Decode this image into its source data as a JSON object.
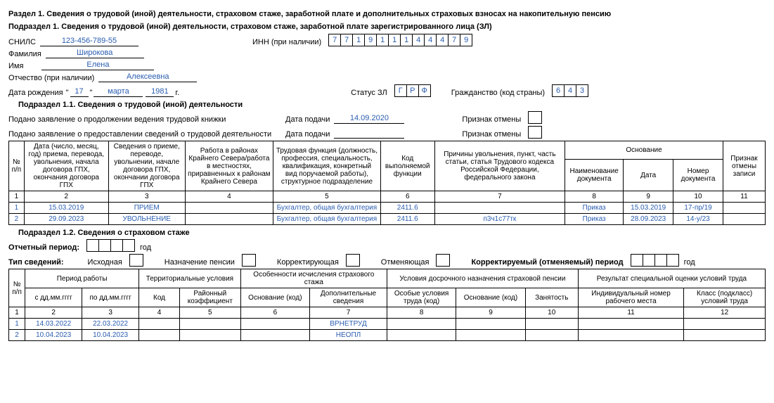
{
  "section1_title": "Раздел 1. Сведения о трудовой (иной) деятельности, страховом стаже, заработной плате и дополнительных страховых взносах на накопительную пенсию",
  "subsection1_title": "Подраздел 1. Сведения о трудовой (иной) деятельности, страховом стаже, заработной плате зарегистрированного лица (ЗЛ)",
  "labels": {
    "snils": "СНИЛС",
    "inn": "ИНН (при наличии)",
    "surname": "Фамилия",
    "name": "Имя",
    "patronymic": "Отчество (при наличии)",
    "dob": "Дата рождения",
    "status": "Статус ЗЛ",
    "citizenship": "Гражданство (код страны)",
    "year_suffix": "г."
  },
  "person": {
    "snils": "123-456-789-55",
    "inn": [
      "7",
      "7",
      "1",
      "9",
      "1",
      "1",
      "1",
      "4",
      "4",
      "4",
      "7",
      "9"
    ],
    "surname": "Широкова",
    "name": "Елена",
    "patronymic": "Алексеевна",
    "dob_day": "17",
    "dob_month": "марта",
    "dob_year": "1981",
    "status": [
      "Г",
      "Р",
      "Ф"
    ],
    "citizenship": [
      "6",
      "4",
      "3"
    ]
  },
  "sub11": {
    "title": "Подраздел 1.1. Сведения о трудовой (иной) деятельности",
    "stmt_cont": "Подано заявление о продолжении ведения трудовой книжки",
    "stmt_info": "Подано заявление о предоставлении сведений о трудовой деятельности",
    "date_label": "Дата подачи",
    "date1": "14.09.2020",
    "cancel_label": "Признак отмены",
    "headers": {
      "num": "№ п/п",
      "date": "Дата (число, месяц, год) приема, перевода, увольнения, начала договора ГПХ, окончания договора ГПХ",
      "event": "Сведения о приеме, переводе, увольнении, начале договора ГПХ, окончании договора ГПХ",
      "north": "Работа в районах Крайнего Севера/работа в местностях, приравненных к районам Крайнего Севера",
      "func": "Трудовая функция (должность, профессия, специальность, квалификация, конкретный вид поручаемой работы), структурное подразделение",
      "code": "Код выполняемой функции",
      "reason": "Причины увольнения, пункт, часть статьи, статья Трудового кодекса Российской Федерации, федерального закона",
      "basis": "Основание",
      "doc_name": "Наименование документа",
      "doc_date": "Дата",
      "doc_num": "Номер документа",
      "cancel": "Признак отмены записи"
    },
    "colnums": [
      "1",
      "2",
      "3",
      "4",
      "5",
      "6",
      "7",
      "8",
      "9",
      "10",
      "11"
    ],
    "rows": [
      {
        "n": "1",
        "date": "15.03.2019",
        "event": "ПРИЕМ",
        "north": "",
        "func": "Бухгалтер, общая бухгалтерия",
        "code": "2411.6",
        "reason": "",
        "dname": "Приказ",
        "ddate": "15.03.2019",
        "dnum": "17-пр/19",
        "cancel": ""
      },
      {
        "n": "2",
        "date": "29.09.2023",
        "event": "УВОЛЬНЕНИЕ",
        "north": "",
        "func": "Бухгалтер, общая бухгалтерия",
        "code": "2411.6",
        "reason": "п3ч1с77тк",
        "dname": "Приказ",
        "ddate": "28.09.2023",
        "dnum": "14-у/23",
        "cancel": ""
      }
    ]
  },
  "sub12": {
    "title": "Подраздел 1.2. Сведения о страховом стаже",
    "report_period": "Отчетный период:",
    "year_label": "год",
    "type_label": "Тип сведений:",
    "type_initial": "Исходная",
    "type_pension": "Назначение пенсии",
    "type_correct": "Корректирующая",
    "type_cancel": "Отменяющая",
    "corrected_period": "Корректируемый (отменяемый) период",
    "headers": {
      "num": "№ п/п",
      "period": "Период работы",
      "from": "с дд.мм.гггг",
      "to": "по дд.мм.гггг",
      "terr": "Территориальные условия",
      "code": "Код",
      "coef": "Районный коэффициент",
      "calc": "Особенности исчисления страхового стажа",
      "basis_code": "Основание (код)",
      "add_info": "Дополнительные сведения",
      "early": "Условия досрочного назначения страховой пенсии",
      "special": "Особые условия труда (код)",
      "basis_code2": "Основание (код)",
      "employment": "Занятость",
      "result": "Результат специальной оценки условий труда",
      "workplace_id": "Индивидуальный номер рабочего места",
      "class": "Класс (подкласс) условий труда"
    },
    "colnums": [
      "1",
      "2",
      "3",
      "4",
      "5",
      "6",
      "7",
      "8",
      "9",
      "10",
      "11",
      "12"
    ],
    "rows": [
      {
        "n": "1",
        "from": "14.03.2022",
        "to": "22.03.2022",
        "add": "ВРНЕТРУД"
      },
      {
        "n": "2",
        "from": "10.04.2023",
        "to": "10.04.2023",
        "add": "НЕОПЛ"
      }
    ]
  }
}
